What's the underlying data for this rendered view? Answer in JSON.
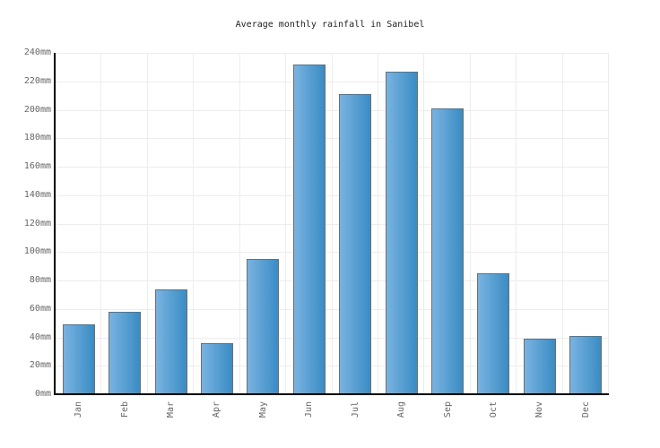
{
  "chart_data": {
    "type": "bar",
    "title": "Average monthly rainfall in Sanibel",
    "unit": "mm",
    "categories": [
      "Jan",
      "Feb",
      "Mar",
      "Apr",
      "May",
      "Jun",
      "Jul",
      "Aug",
      "Sep",
      "Oct",
      "Nov",
      "Dec"
    ],
    "values": [
      49,
      58,
      74,
      36,
      95,
      232,
      211,
      227,
      201,
      85,
      39,
      41
    ],
    "xlabel": "",
    "ylabel": "",
    "ylim": [
      0,
      240
    ],
    "ytick_step": 20,
    "ytick_labels": [
      "0mm",
      "20mm",
      "40mm",
      "60mm",
      "80mm",
      "100mm",
      "120mm",
      "140mm",
      "160mm",
      "180mm",
      "200mm",
      "220mm",
      "240mm"
    ],
    "grid": true,
    "legend": false
  },
  "colors": {
    "background": "#ffffff",
    "bar_gradient_left": "#79b3e1",
    "bar_gradient_right": "#3a8cc4",
    "bar_border": "#6e6e6e",
    "gridline": "#ededed",
    "axis": "#000000",
    "title_text": "#222222",
    "tick_text": "#666666"
  }
}
